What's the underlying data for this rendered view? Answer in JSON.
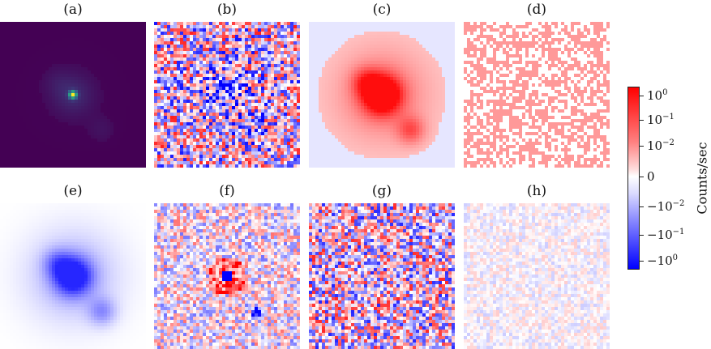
{
  "chart_data": {
    "type": "heatmap",
    "panels": [
      {
        "label": "(a)",
        "colormap": "viridis"
      },
      {
        "label": "(b)",
        "colormap": "bwr"
      },
      {
        "label": "(c)",
        "colormap": "bwr"
      },
      {
        "label": "(d)",
        "colormap": "bwr"
      },
      {
        "label": "(e)",
        "colormap": "bwr"
      },
      {
        "label": "(f)",
        "colormap": "bwr"
      },
      {
        "label": "(g)",
        "colormap": "bwr"
      },
      {
        "label": "(h)",
        "colormap": "bwr"
      }
    ],
    "colorbar": {
      "label": "Counts/sec",
      "scale": "symlog",
      "ticks": [
        {
          "base": "10",
          "exp": "0",
          "sign": ""
        },
        {
          "base": "10",
          "exp": "−1",
          "sign": ""
        },
        {
          "base": "10",
          "exp": "−2",
          "sign": ""
        },
        {
          "base": "0",
          "exp": "",
          "sign": ""
        },
        {
          "base": "10",
          "exp": "−2",
          "sign": "−"
        },
        {
          "base": "10",
          "exp": "−1",
          "sign": "−"
        },
        {
          "base": "10",
          "exp": "0",
          "sign": "−"
        }
      ],
      "colors": {
        "max": "#ff0000",
        "zero": "#ffffff",
        "min": "#0000ff"
      }
    }
  }
}
